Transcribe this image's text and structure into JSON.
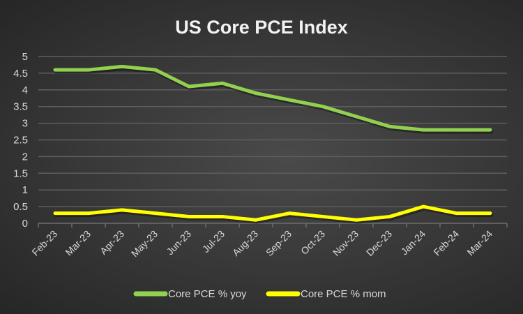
{
  "chart_data": {
    "type": "line",
    "title": "US Core PCE Index",
    "xlabel": "",
    "ylabel": "",
    "ylim": [
      0,
      5
    ],
    "yticks": [
      "0",
      "0.5",
      "1",
      "1.5",
      "2",
      "2.5",
      "3",
      "3.5",
      "4",
      "4.5",
      "5"
    ],
    "grid": true,
    "legend_position": "bottom",
    "categories": [
      "Feb-23",
      "Mar-23",
      "Apr-23",
      "May-23",
      "Jun-23",
      "Jul-23",
      "Aug-23",
      "Sep-23",
      "Oct-23",
      "Nov-23",
      "Dec-23",
      "Jan-24",
      "Feb-24",
      "Mar-24"
    ],
    "series": [
      {
        "name": "Core PCE % yoy",
        "color": "#92d050",
        "values": [
          4.6,
          4.6,
          4.7,
          4.6,
          4.1,
          4.2,
          3.9,
          3.7,
          3.5,
          3.2,
          2.9,
          2.8,
          2.8,
          2.8
        ]
      },
      {
        "name": "Core PCE % mom",
        "color": "#ffff00",
        "values": [
          0.3,
          0.3,
          0.4,
          0.3,
          0.2,
          0.2,
          0.1,
          0.3,
          0.2,
          0.1,
          0.2,
          0.5,
          0.3,
          0.3
        ]
      }
    ]
  }
}
